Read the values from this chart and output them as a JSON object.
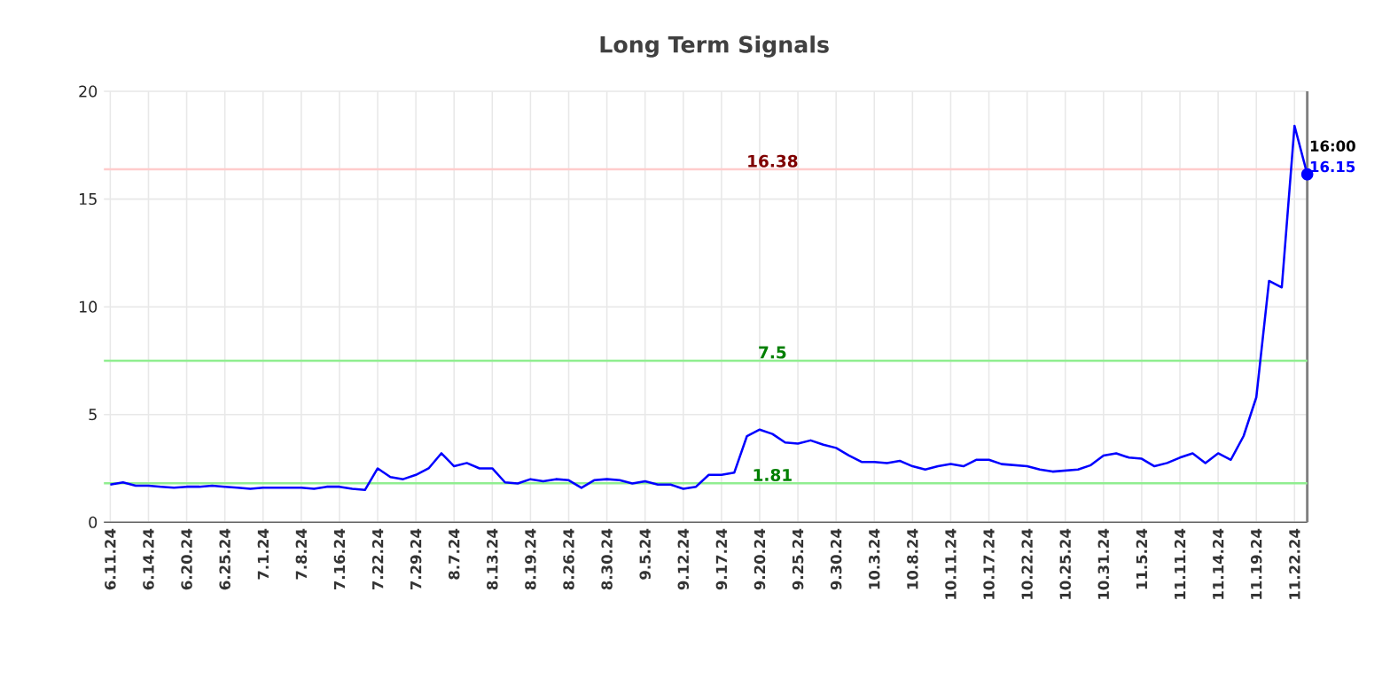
{
  "chart_data": {
    "type": "line",
    "title": "Long Term Signals",
    "categories": [
      "6.11.24",
      null,
      null,
      "6.14.24",
      null,
      null,
      "6.20.24",
      null,
      null,
      "6.25.24",
      null,
      null,
      "7.1.24",
      null,
      null,
      "7.8.24",
      null,
      null,
      "7.16.24",
      null,
      null,
      "7.22.24",
      null,
      null,
      "7.29.24",
      null,
      null,
      "8.7.24",
      null,
      null,
      "8.13.24",
      null,
      null,
      "8.19.24",
      null,
      null,
      "8.26.24",
      null,
      null,
      "8.30.24",
      null,
      null,
      "9.5.24",
      null,
      null,
      "9.12.24",
      null,
      null,
      "9.17.24",
      null,
      null,
      "9.20.24",
      null,
      null,
      "9.25.24",
      null,
      null,
      "9.30.24",
      null,
      null,
      "10.3.24",
      null,
      null,
      "10.8.24",
      null,
      null,
      "10.11.24",
      null,
      null,
      "10.17.24",
      null,
      null,
      "10.22.24",
      null,
      null,
      "10.25.24",
      null,
      null,
      "10.31.24",
      null,
      null,
      "11.5.24",
      null,
      null,
      "11.11.24",
      null,
      null,
      "11.14.24",
      null,
      null,
      "11.19.24",
      null,
      null,
      "11.22.24",
      null
    ],
    "series": [
      {
        "color": "#0000ff",
        "values": [
          1.75,
          1.85,
          1.7,
          1.7,
          1.65,
          1.6,
          1.65,
          1.65,
          1.7,
          1.65,
          1.6,
          1.55,
          1.6,
          1.6,
          1.6,
          1.6,
          1.55,
          1.65,
          1.65,
          1.55,
          1.5,
          2.5,
          2.1,
          2.0,
          2.2,
          2.5,
          3.2,
          2.6,
          2.75,
          2.5,
          2.5,
          1.85,
          1.8,
          2.0,
          1.9,
          2.0,
          1.95,
          1.6,
          1.95,
          2.0,
          1.95,
          1.8,
          1.9,
          1.75,
          1.75,
          1.55,
          1.65,
          2.2,
          2.2,
          2.3,
          4.0,
          4.3,
          4.1,
          3.7,
          3.65,
          3.8,
          3.6,
          3.45,
          3.1,
          2.8,
          2.8,
          2.75,
          2.85,
          2.6,
          2.45,
          2.6,
          2.7,
          2.6,
          2.9,
          2.9,
          2.7,
          2.65,
          2.6,
          2.45,
          2.35,
          2.4,
          2.45,
          2.65,
          3.1,
          3.2,
          3.0,
          2.95,
          2.6,
          2.75,
          3.0,
          3.2,
          2.75,
          3.2,
          2.9,
          4.0,
          5.8,
          11.2,
          10.9,
          18.4,
          16.15
        ],
        "value_labels": [
          null,
          null,
          null,
          null,
          null,
          null,
          null,
          null,
          null,
          null,
          null,
          null,
          null,
          null,
          null,
          null,
          null,
          null,
          null,
          null,
          null,
          null,
          null,
          null,
          null,
          null,
          null,
          null,
          null,
          null,
          null,
          null,
          null,
          null,
          null,
          null,
          null,
          null,
          null,
          null,
          null,
          null,
          null,
          null,
          null,
          null,
          null,
          null,
          null,
          null,
          null,
          null,
          null,
          null,
          null,
          null,
          null,
          null,
          null,
          null,
          null,
          null,
          null,
          null,
          null,
          null,
          null,
          null,
          null,
          null,
          null,
          null,
          null,
          null,
          null,
          null,
          null,
          null,
          null,
          null,
          null,
          null,
          null,
          null,
          null,
          null,
          null,
          null,
          null,
          null,
          null,
          null,
          null,
          null,
          "16.15"
        ]
      }
    ],
    "ylim": [
      0,
      20
    ],
    "yticks": [
      0,
      5,
      10,
      15,
      20
    ],
    "grid": true,
    "ref_lines": [
      {
        "axis": "y",
        "value": 16.38,
        "label": "16.38",
        "color": "#ffcccc"
      },
      {
        "axis": "y",
        "value": 7.5,
        "label": "7.5",
        "color": "#90ee90"
      },
      {
        "axis": "y",
        "value": 1.81,
        "label": "1.81",
        "color": "#90ee90"
      }
    ],
    "annotations": [
      "16:00"
    ]
  }
}
